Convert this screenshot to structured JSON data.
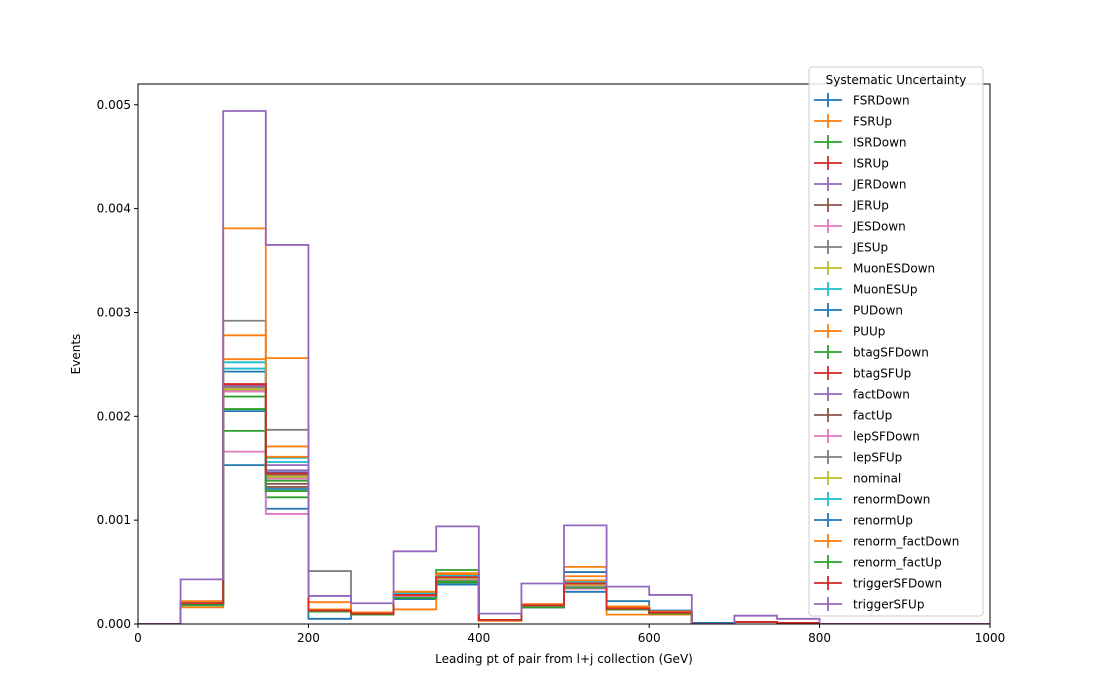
{
  "chart_data": {
    "type": "histogram",
    "title": "",
    "xlabel": "Leading pt of pair from l+j collection (GeV)",
    "ylabel": "Events",
    "xlim": [
      0,
      1000
    ],
    "ylim": [
      0,
      0.0052
    ],
    "x_ticks": [
      0,
      200,
      400,
      600,
      800,
      1000
    ],
    "x_tick_labels": [
      "0",
      "200",
      "400",
      "600",
      "800",
      "1000"
    ],
    "y_ticks": [
      0,
      0.001,
      0.002,
      0.003,
      0.004,
      0.005
    ],
    "y_tick_labels": [
      "0.000",
      "0.001",
      "0.002",
      "0.003",
      "0.004",
      "0.005"
    ],
    "grid": false,
    "legend_title": "Systematic Uncertainty",
    "legend_position": "top-right",
    "bin_edges": [
      0,
      50,
      100,
      150,
      200,
      250,
      300,
      350,
      400,
      450,
      500,
      550,
      600,
      650,
      700,
      750,
      800,
      850,
      900,
      950,
      1000
    ],
    "series": [
      {
        "name": "FSRDown",
        "color": "#1f77b4",
        "values": [
          0,
          0.00019,
          0.00153,
          0.00111,
          0.00012,
          0.0001,
          0.00024,
          0.00038,
          4e-05,
          0.00016,
          0.00031,
          0.00022,
          0.00013,
          1e-05,
          2e-05,
          1e-05,
          0,
          0,
          0,
          0
        ]
      },
      {
        "name": "FSRUp",
        "color": "#ff7f0e",
        "values": [
          0,
          0.00016,
          0.00278,
          0.00171,
          0.00014,
          9e-05,
          0.00014,
          0.00045,
          3e-05,
          0.00017,
          0.00055,
          9e-05,
          9e-05,
          0,
          2e-05,
          1e-05,
          0,
          0,
          0,
          0
        ]
      },
      {
        "name": "ISRDown",
        "color": "#2ca02c",
        "values": [
          0,
          0.00018,
          0.00186,
          0.00122,
          0.00013,
          0.0001,
          0.00027,
          0.00041,
          4e-05,
          0.00016,
          0.00035,
          0.00016,
          0.00012,
          0,
          2e-05,
          1e-05,
          0,
          0,
          0,
          0
        ]
      },
      {
        "name": "ISRUp",
        "color": "#d62728",
        "values": [
          0,
          0.0002,
          0.0023,
          0.00142,
          0.00013,
          0.0001,
          0.00028,
          0.00044,
          4e-05,
          0.00018,
          0.00039,
          0.00014,
          0.00011,
          0,
          2e-05,
          1e-05,
          0,
          0,
          0,
          0
        ]
      },
      {
        "name": "JERDown",
        "color": "#9467bd",
        "values": [
          0,
          0.00019,
          0.00226,
          0.00148,
          0.00013,
          0.0001,
          0.00027,
          0.00043,
          4e-05,
          0.00017,
          0.00038,
          0.00015,
          0.00011,
          0,
          2e-05,
          1e-05,
          0,
          0,
          0,
          0
        ]
      },
      {
        "name": "JERUp",
        "color": "#8c564b",
        "values": [
          0,
          0.0002,
          0.00224,
          0.00132,
          0.00013,
          0.0001,
          0.00027,
          0.00043,
          4e-05,
          0.00017,
          0.00037,
          0.00015,
          0.00011,
          0,
          2e-05,
          1e-05,
          0,
          0,
          0,
          0
        ]
      },
      {
        "name": "JESDown",
        "color": "#e377c2",
        "values": [
          0,
          0.00019,
          0.00166,
          0.00106,
          0.00012,
          0.0001,
          0.00026,
          0.0004,
          4e-05,
          0.00016,
          0.00034,
          0.00015,
          0.00011,
          0,
          2e-05,
          1e-05,
          0,
          0,
          0,
          0
        ]
      },
      {
        "name": "JESUp",
        "color": "#7f7f7f",
        "values": [
          0,
          0.00021,
          0.00292,
          0.00187,
          0.00051,
          0.0001,
          0.00029,
          0.00046,
          4e-05,
          0.00018,
          0.00042,
          0.00016,
          0.00012,
          0,
          2e-05,
          1e-05,
          0,
          0,
          0,
          0
        ]
      },
      {
        "name": "MuonESDown",
        "color": "#bcbd22",
        "values": [
          0,
          0.0002,
          0.00226,
          0.00141,
          0.00013,
          0.0001,
          0.00028,
          0.00044,
          4e-05,
          0.00017,
          0.00038,
          0.00015,
          0.00011,
          0,
          2e-05,
          1e-05,
          0,
          0,
          0,
          0
        ]
      },
      {
        "name": "MuonESUp",
        "color": "#17becf",
        "values": [
          0,
          0.0002,
          0.00252,
          0.0016,
          0.00013,
          0.0001,
          0.00029,
          0.00045,
          4e-05,
          0.00018,
          0.00041,
          0.00016,
          0.00012,
          0,
          2e-05,
          1e-05,
          0,
          0,
          0,
          0
        ]
      },
      {
        "name": "PUDown",
        "color": "#1f77b4",
        "values": [
          0,
          0.0002,
          0.00243,
          0.00146,
          5e-05,
          0.0001,
          0.00028,
          0.00044,
          4e-05,
          0.00017,
          0.0005,
          0.00015,
          0.00011,
          0,
          2e-05,
          1e-05,
          0,
          0,
          0,
          0
        ]
      },
      {
        "name": "PUUp",
        "color": "#ff7f0e",
        "values": [
          0,
          0.00022,
          0.00381,
          0.00256,
          0.00021,
          0.00011,
          0.00031,
          0.00049,
          4e-05,
          0.00019,
          0.00046,
          0.00017,
          0.00012,
          0,
          2e-05,
          1e-05,
          0,
          0,
          0,
          0
        ]
      },
      {
        "name": "btagSFDown",
        "color": "#2ca02c",
        "values": [
          0,
          0.00019,
          0.00219,
          0.00138,
          0.00013,
          0.0001,
          0.00027,
          0.00052,
          4e-05,
          0.00017,
          0.00037,
          0.00015,
          0.00011,
          0,
          2e-05,
          1e-05,
          0,
          0,
          0,
          0
        ]
      },
      {
        "name": "btagSFUp",
        "color": "#d62728",
        "values": [
          0,
          0.0002,
          0.00231,
          0.00144,
          0.00013,
          0.0001,
          0.00028,
          0.00044,
          4e-05,
          0.00019,
          0.00039,
          0.00015,
          0.00011,
          0,
          2e-05,
          1e-05,
          0,
          0,
          0,
          0
        ]
      },
      {
        "name": "factDown",
        "color": "#9467bd",
        "values": [
          0,
          0.0002,
          0.00229,
          0.00153,
          0.00013,
          0.0001,
          0.00028,
          0.00044,
          4e-05,
          0.00017,
          0.00038,
          0.00015,
          0.00011,
          0,
          2e-05,
          1e-05,
          0,
          0,
          0,
          0
        ]
      },
      {
        "name": "factUp",
        "color": "#8c564b",
        "values": [
          0,
          0.0002,
          0.00226,
          0.00135,
          0.00013,
          0.0001,
          0.00028,
          0.00044,
          4e-05,
          0.00017,
          0.00038,
          0.00015,
          0.00011,
          0,
          2e-05,
          1e-05,
          0,
          0,
          0,
          0
        ]
      },
      {
        "name": "lepSFDown",
        "color": "#e377c2",
        "values": [
          0,
          0.00019,
          0.00224,
          0.0014,
          0.00013,
          0.0001,
          0.00027,
          0.00043,
          4e-05,
          0.00017,
          0.00037,
          0.00015,
          0.00011,
          0,
          2e-05,
          1e-05,
          0,
          0,
          0,
          0
        ]
      },
      {
        "name": "lepSFUp",
        "color": "#7f7f7f",
        "values": [
          0,
          0.0002,
          0.00228,
          0.00143,
          0.00013,
          0.0001,
          0.00028,
          0.00044,
          4e-05,
          0.00017,
          0.00038,
          0.00015,
          0.00011,
          0,
          2e-05,
          1e-05,
          0,
          0,
          0,
          0
        ]
      },
      {
        "name": "nominal",
        "color": "#bcbd22",
        "values": [
          0,
          0.0002,
          0.00226,
          0.00142,
          0.00013,
          0.0001,
          0.00028,
          0.00044,
          4e-05,
          0.00017,
          0.00038,
          0.00015,
          0.00011,
          0,
          2e-05,
          1e-05,
          0,
          0,
          0,
          0
        ]
      },
      {
        "name": "renormDown",
        "color": "#17becf",
        "values": [
          0,
          0.0002,
          0.00246,
          0.00156,
          0.00014,
          0.0001,
          0.0003,
          0.00047,
          4e-05,
          0.00018,
          0.00041,
          0.00016,
          0.00012,
          0,
          2e-05,
          1e-05,
          0,
          0,
          0,
          0
        ]
      },
      {
        "name": "renormUp",
        "color": "#1f77b4",
        "values": [
          0,
          0.00019,
          0.00205,
          0.0013,
          0.00012,
          9e-05,
          0.00025,
          0.0004,
          4e-05,
          0.00016,
          0.00035,
          0.00014,
          0.0001,
          0,
          2e-05,
          1e-05,
          0,
          0,
          0,
          0
        ]
      },
      {
        "name": "renorm_factDown",
        "color": "#ff7f0e",
        "values": [
          0,
          0.0002,
          0.00255,
          0.00161,
          0.00014,
          0.00011,
          0.00031,
          0.00048,
          4e-05,
          0.00019,
          0.00042,
          0.00016,
          0.00012,
          0,
          2e-05,
          1e-05,
          0,
          0,
          0,
          0
        ]
      },
      {
        "name": "renorm_factUp",
        "color": "#2ca02c",
        "values": [
          0,
          0.00019,
          0.00207,
          0.00128,
          0.00012,
          9e-05,
          0.00025,
          0.0004,
          4e-05,
          0.00016,
          0.00035,
          0.00014,
          0.0001,
          0,
          2e-05,
          1e-05,
          0,
          0,
          0,
          0
        ]
      },
      {
        "name": "triggerSFDown",
        "color": "#d62728",
        "values": [
          0,
          0.0002,
          0.00231,
          0.00145,
          0.00013,
          0.0001,
          0.00028,
          0.00045,
          4e-05,
          0.00018,
          0.00039,
          0.00015,
          0.00011,
          0,
          2e-05,
          1e-05,
          0,
          0,
          0,
          0
        ]
      },
      {
        "name": "triggerSFUp",
        "color": "#9467bd",
        "values": [
          0,
          0.00043,
          0.00494,
          0.00365,
          0.00027,
          0.0002,
          0.0007,
          0.00094,
          0.0001,
          0.00039,
          0.00095,
          0.00036,
          0.00028,
          0,
          8e-05,
          5e-05,
          0,
          0,
          0,
          0
        ]
      }
    ]
  }
}
